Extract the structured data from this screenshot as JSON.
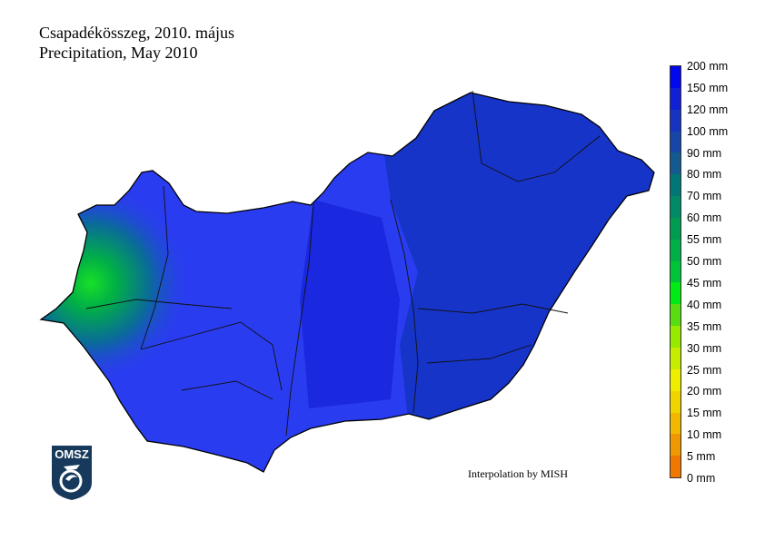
{
  "title_hu": "Csapadékösszeg, 2010. május",
  "title_en": "Precipitation, May 2010",
  "credit": "Interpolation by MISH",
  "logo": {
    "text": "OMSZ",
    "icon": "omsz-logo"
  },
  "legend": {
    "labels": [
      "200 mm",
      "150 mm",
      "120 mm",
      "100 mm",
      "90 mm",
      "80 mm",
      "70 mm",
      "60 mm",
      "55 mm",
      "50 mm",
      "45 mm",
      "40 mm",
      "35 mm",
      "30 mm",
      "25 mm",
      "20 mm",
      "15 mm",
      "10 mm",
      "5 mm",
      "0 mm"
    ],
    "colors": [
      "#0008ee",
      "#1020d6",
      "#1634c0",
      "#1646a8",
      "#125a90",
      "#007676",
      "#008a66",
      "#009c52",
      "#00b046",
      "#00c438",
      "#00ea14",
      "#58dc12",
      "#96ea00",
      "#c6ec00",
      "#f0ee00",
      "#f0d400",
      "#f0b800",
      "#f09800",
      "#f07800"
    ]
  },
  "map_colors": {
    "main": "#2a3cf0",
    "east": "#1634c8",
    "west_wet": "#009c52",
    "max": "#18e028"
  }
}
